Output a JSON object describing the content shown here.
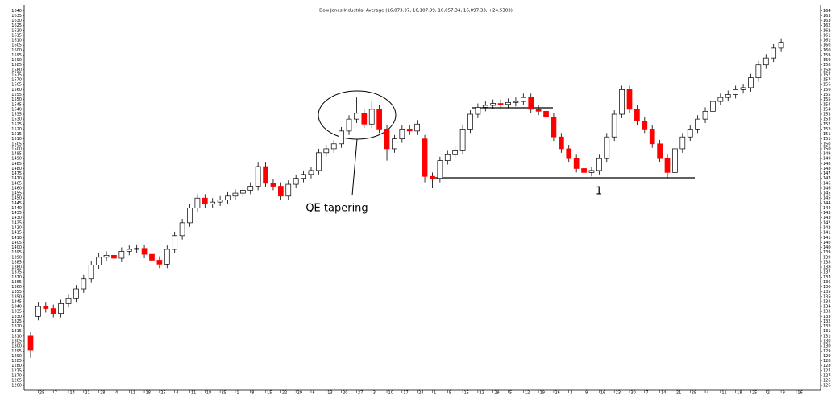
{
  "chart_data": {
    "type": "candlestick",
    "title": "Dow Jones Industrial Average (16,073.37, 16,107.99, 16,057.34, 16,097.33, +24.5303)",
    "annotations": [
      "QE tapering",
      "1"
    ],
    "up_color": "#ffffff",
    "down_color": "#ff0000",
    "xlim": [
      -0.85,
      104.2
    ],
    "xticks": [
      {
        "value": 1,
        "label": "28"
      },
      {
        "value": 3,
        "label": "7"
      },
      {
        "value": 5,
        "label": "14"
      },
      {
        "value": 7,
        "label": "21"
      },
      {
        "value": 9,
        "label": "28"
      },
      {
        "value": 11,
        "label": "4"
      },
      {
        "value": 13,
        "label": "11"
      },
      {
        "value": 15,
        "label": "18"
      },
      {
        "value": 17,
        "label": "25"
      },
      {
        "value": 19,
        "label": "4"
      },
      {
        "value": 21,
        "label": "11"
      },
      {
        "value": 23,
        "label": "18"
      },
      {
        "value": 25,
        "label": "25"
      },
      {
        "value": 27,
        "label": "1"
      },
      {
        "value": 29,
        "label": "8"
      },
      {
        "value": 31,
        "label": "15"
      },
      {
        "value": 33,
        "label": "22"
      },
      {
        "value": 35,
        "label": "29"
      },
      {
        "value": 37,
        "label": "6"
      },
      {
        "value": 39,
        "label": "13"
      },
      {
        "value": 41,
        "label": "20"
      },
      {
        "value": 43,
        "label": "27"
      },
      {
        "value": 45,
        "label": "3"
      },
      {
        "value": 47,
        "label": "10"
      },
      {
        "value": 49,
        "label": "17"
      },
      {
        "value": 51,
        "label": "24"
      },
      {
        "value": 53,
        "label": "1"
      },
      {
        "value": 55,
        "label": "8"
      },
      {
        "value": 57,
        "label": "15"
      },
      {
        "value": 59,
        "label": "22"
      },
      {
        "value": 61,
        "label": "29"
      },
      {
        "value": 63,
        "label": "5"
      },
      {
        "value": 65,
        "label": "12"
      },
      {
        "value": 67,
        "label": "19"
      },
      {
        "value": 69,
        "label": "26"
      },
      {
        "value": 71,
        "label": "3"
      },
      {
        "value": 73,
        "label": "9"
      },
      {
        "value": 75,
        "label": "16"
      },
      {
        "value": 77,
        "label": "23"
      },
      {
        "value": 79,
        "label": "30"
      },
      {
        "value": 81,
        "label": "7"
      },
      {
        "value": 83,
        "label": "14"
      },
      {
        "value": 85,
        "label": "21"
      },
      {
        "value": 87,
        "label": "28"
      },
      {
        "value": 89,
        "label": "4"
      },
      {
        "value": 91,
        "label": "11"
      },
      {
        "value": 93,
        "label": "18"
      },
      {
        "value": 95,
        "label": "25"
      },
      {
        "value": 97,
        "label": "2"
      },
      {
        "value": 99,
        "label": "9"
      },
      {
        "value": 101,
        "label": "16"
      }
    ],
    "ylim": [
      1258.5,
      1643.5
    ],
    "yticks": [
      1260,
      1265,
      1270,
      1275,
      1280,
      1285,
      1290,
      1295,
      1300,
      1305,
      1310,
      1315,
      1320,
      1325,
      1330,
      1335,
      1340,
      1345,
      1350,
      1355,
      1360,
      1365,
      1370,
      1375,
      1380,
      1385,
      1390,
      1395,
      1400,
      1405,
      1410,
      1415,
      1420,
      1425,
      1430,
      1435,
      1440,
      1445,
      1450,
      1455,
      1460,
      1465,
      1470,
      1475,
      1480,
      1485,
      1490,
      1495,
      1500,
      1505,
      1510,
      1515,
      1520,
      1525,
      1530,
      1535,
      1540,
      1545,
      1550,
      1555,
      1560,
      1565,
      1570,
      1575,
      1580,
      1585,
      1590,
      1595,
      1600,
      1605,
      1610,
      1615,
      1620,
      1625,
      1630,
      1635,
      1640
    ],
    "open": [
      1310,
      1330,
      1340,
      1338,
      1333,
      1343,
      1348,
      1358,
      1368,
      1382,
      1390,
      1392,
      1389,
      1396,
      1398,
      1399,
      1393,
      1387,
      1383,
      1398,
      1412,
      1425,
      1440,
      1450,
      1444,
      1446,
      1448,
      1452,
      1455,
      1458,
      1462,
      1482,
      1465,
      1462,
      1452,
      1464,
      1470,
      1474,
      1478,
      1496,
      1500,
      1505,
      1518,
      1530,
      1536,
      1525,
      1540,
      1520,
      1500,
      1510,
      1520,
      1518,
      1510,
      1472,
      1470,
      1488,
      1494,
      1498,
      1520,
      1535,
      1542,
      1544,
      1546,
      1545,
      1547,
      1548,
      1552,
      1540,
      1538,
      1532,
      1512,
      1500,
      1490,
      1480,
      1476,
      1478,
      1490,
      1512,
      1535,
      1560,
      1540,
      1528,
      1520,
      1505,
      1490,
      1476,
      1500,
      1512,
      1520,
      1530,
      1538,
      1548,
      1552,
      1555,
      1560,
      1562,
      1572,
      1585,
      1592,
      1602
    ],
    "high": [
      1314,
      1344,
      1344,
      1342,
      1347,
      1352,
      1362,
      1372,
      1386,
      1394,
      1396,
      1396,
      1400,
      1402,
      1403,
      1403,
      1397,
      1391,
      1402,
      1416,
      1429,
      1444,
      1454,
      1454,
      1450,
      1452,
      1456,
      1459,
      1462,
      1466,
      1486,
      1486,
      1469,
      1466,
      1468,
      1474,
      1478,
      1482,
      1500,
      1504,
      1509,
      1522,
      1534,
      1552,
      1540,
      1548,
      1544,
      1524,
      1514,
      1524,
      1524,
      1529,
      1514,
      1476,
      1492,
      1498,
      1502,
      1524,
      1539,
      1546,
      1548,
      1550,
      1550,
      1551,
      1552,
      1556,
      1556,
      1544,
      1542,
      1536,
      1516,
      1504,
      1494,
      1484,
      1482,
      1494,
      1516,
      1539,
      1564,
      1564,
      1544,
      1532,
      1524,
      1509,
      1494,
      1504,
      1516,
      1524,
      1534,
      1542,
      1552,
      1556,
      1559,
      1564,
      1566,
      1576,
      1589,
      1596,
      1606,
      1612
    ],
    "low": [
      1288,
      1326,
      1334,
      1329,
      1329,
      1339,
      1344,
      1354,
      1364,
      1378,
      1386,
      1385,
      1385,
      1392,
      1394,
      1389,
      1383,
      1379,
      1379,
      1394,
      1408,
      1421,
      1436,
      1440,
      1440,
      1442,
      1444,
      1448,
      1451,
      1454,
      1458,
      1461,
      1458,
      1448,
      1448,
      1460,
      1466,
      1470,
      1474,
      1492,
      1496,
      1501,
      1514,
      1526,
      1521,
      1521,
      1516,
      1488,
      1496,
      1506,
      1514,
      1514,
      1466,
      1460,
      1466,
      1484,
      1490,
      1494,
      1516,
      1531,
      1538,
      1540,
      1541,
      1541,
      1543,
      1544,
      1536,
      1534,
      1528,
      1508,
      1496,
      1486,
      1476,
      1472,
      1472,
      1474,
      1486,
      1508,
      1531,
      1536,
      1524,
      1516,
      1501,
      1486,
      1470,
      1472,
      1496,
      1508,
      1516,
      1526,
      1534,
      1544,
      1548,
      1551,
      1556,
      1558,
      1568,
      1581,
      1588,
      1598
    ],
    "close": [
      1296,
      1340,
      1338,
      1333,
      1343,
      1348,
      1358,
      1368,
      1382,
      1390,
      1392,
      1389,
      1396,
      1398,
      1399,
      1393,
      1387,
      1383,
      1398,
      1412,
      1425,
      1440,
      1450,
      1444,
      1446,
      1448,
      1452,
      1455,
      1458,
      1462,
      1482,
      1465,
      1462,
      1452,
      1464,
      1470,
      1474,
      1478,
      1496,
      1500,
      1505,
      1518,
      1530,
      1536,
      1525,
      1540,
      1520,
      1500,
      1510,
      1520,
      1518,
      1525,
      1472,
      1470,
      1488,
      1494,
      1498,
      1520,
      1535,
      1542,
      1544,
      1546,
      1545,
      1547,
      1548,
      1552,
      1540,
      1538,
      1532,
      1512,
      1500,
      1490,
      1480,
      1476,
      1478,
      1490,
      1512,
      1535,
      1560,
      1540,
      1528,
      1520,
      1505,
      1490,
      1476,
      1500,
      1512,
      1520,
      1530,
      1538,
      1548,
      1552,
      1555,
      1560,
      1562,
      1572,
      1585,
      1592,
      1602,
      1608
    ]
  }
}
